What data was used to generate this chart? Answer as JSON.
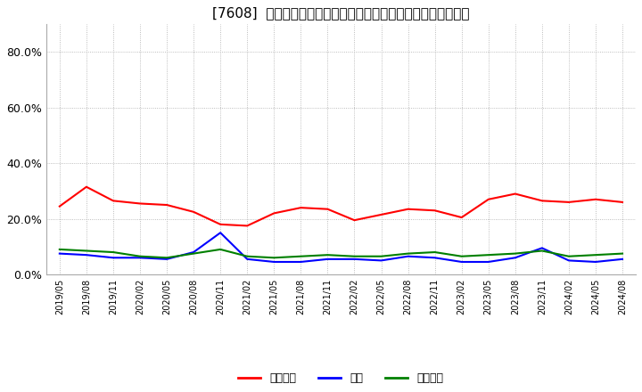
{
  "title": "[7608]  売上債権、在庫、買入債務の総資産に対する比率の推移",
  "title_fontsize": 11,
  "background_color": "#ffffff",
  "plot_bg_color": "#ffffff",
  "grid_color": "#aaaaaa",
  "ylim": [
    0.0,
    0.9
  ],
  "yticks": [
    0.0,
    0.2,
    0.4,
    0.6,
    0.8
  ],
  "ytick_labels": [
    "0.0%",
    "20.0%",
    "40.0%",
    "60.0%",
    "80.0%"
  ],
  "x_labels": [
    "2019/05",
    "2019/08",
    "2019/11",
    "2020/02",
    "2020/05",
    "2020/08",
    "2020/11",
    "2021/02",
    "2021/05",
    "2021/08",
    "2021/11",
    "2022/02",
    "2022/05",
    "2022/08",
    "2022/11",
    "2023/02",
    "2023/05",
    "2023/08",
    "2023/11",
    "2024/02",
    "2024/05",
    "2024/08"
  ],
  "series": {
    "売上債権": {
      "color": "#ff0000",
      "values": [
        0.245,
        0.315,
        0.265,
        0.255,
        0.25,
        0.225,
        0.18,
        0.175,
        0.22,
        0.24,
        0.235,
        0.195,
        0.215,
        0.235,
        0.23,
        0.205,
        0.27,
        0.29,
        0.265,
        0.26,
        0.27,
        0.26
      ]
    },
    "在庫": {
      "color": "#0000ff",
      "values": [
        0.075,
        0.07,
        0.06,
        0.06,
        0.055,
        0.08,
        0.15,
        0.055,
        0.045,
        0.045,
        0.055,
        0.055,
        0.05,
        0.065,
        0.06,
        0.045,
        0.045,
        0.06,
        0.095,
        0.05,
        0.045,
        0.055
      ]
    },
    "買入債務": {
      "color": "#008000",
      "values": [
        0.09,
        0.085,
        0.08,
        0.065,
        0.06,
        0.075,
        0.09,
        0.065,
        0.06,
        0.065,
        0.07,
        0.065,
        0.065,
        0.075,
        0.08,
        0.065,
        0.07,
        0.075,
        0.085,
        0.065,
        0.07,
        0.075
      ]
    }
  },
  "legend_labels": [
    "売上債権",
    "在庫",
    "買入債務"
  ],
  "legend_colors": [
    "#ff0000",
    "#0000ff",
    "#008000"
  ]
}
